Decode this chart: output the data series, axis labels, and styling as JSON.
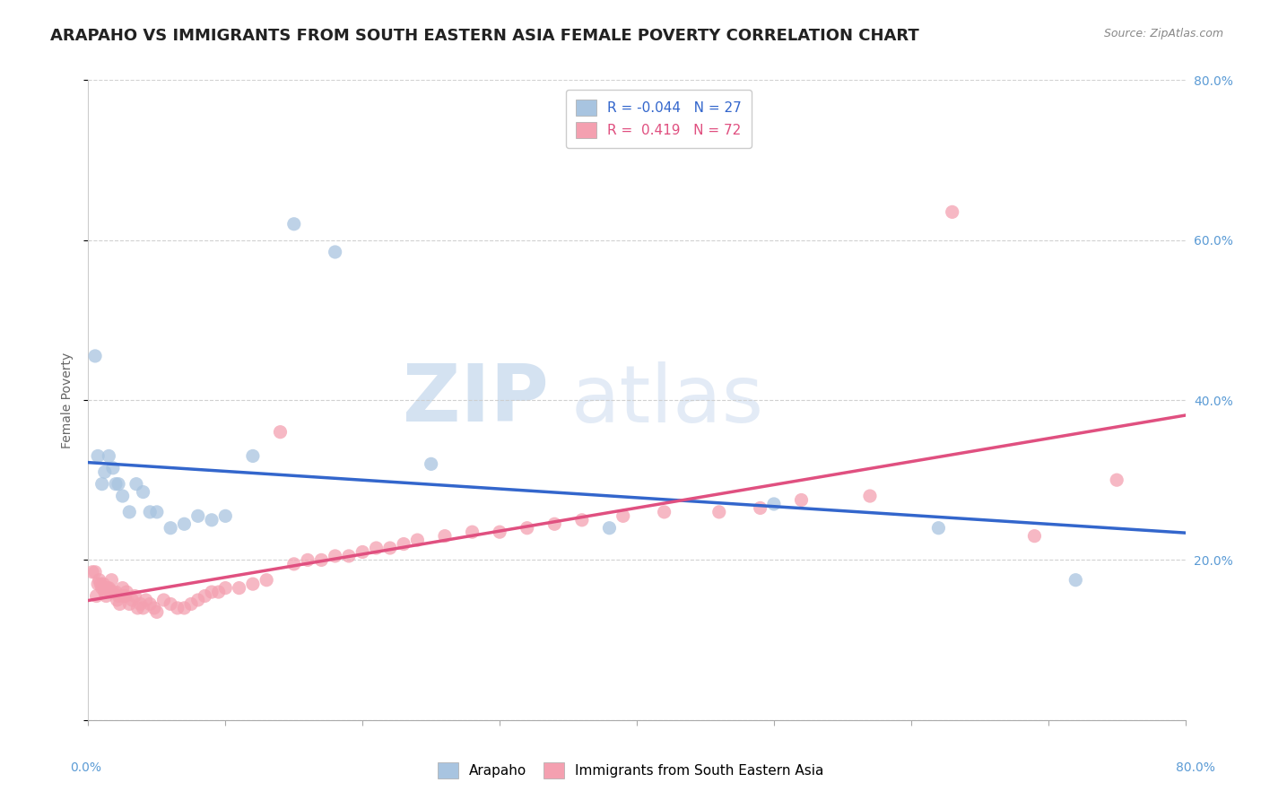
{
  "title": "ARAPAHO VS IMMIGRANTS FROM SOUTH EASTERN ASIA FEMALE POVERTY CORRELATION CHART",
  "source": "Source: ZipAtlas.com",
  "ylabel": "Female Poverty",
  "right_yticks": [
    0.0,
    0.2,
    0.4,
    0.6,
    0.8
  ],
  "right_yticklabels": [
    "",
    "20.0%",
    "40.0%",
    "60.0%",
    "80.0%"
  ],
  "xlim": [
    0.0,
    0.8
  ],
  "ylim": [
    0.0,
    0.8
  ],
  "series1": {
    "name": "Arapaho",
    "color": "#a8c4e0",
    "line_color": "#3366cc",
    "R": -0.044,
    "N": 27,
    "x": [
      0.005,
      0.007,
      0.01,
      0.012,
      0.015,
      0.018,
      0.02,
      0.022,
      0.025,
      0.03,
      0.035,
      0.04,
      0.045,
      0.05,
      0.06,
      0.07,
      0.08,
      0.09,
      0.1,
      0.12,
      0.15,
      0.18,
      0.25,
      0.38,
      0.5,
      0.62,
      0.72
    ],
    "y": [
      0.455,
      0.33,
      0.295,
      0.31,
      0.33,
      0.315,
      0.295,
      0.295,
      0.28,
      0.26,
      0.295,
      0.285,
      0.26,
      0.26,
      0.24,
      0.245,
      0.255,
      0.25,
      0.255,
      0.33,
      0.62,
      0.585,
      0.32,
      0.24,
      0.27,
      0.24,
      0.175
    ]
  },
  "series2": {
    "name": "Immigrants from South Eastern Asia",
    "color": "#f4a0b0",
    "line_color": "#e05080",
    "R": 0.419,
    "N": 72,
    "x": [
      0.003,
      0.005,
      0.006,
      0.007,
      0.008,
      0.009,
      0.01,
      0.011,
      0.012,
      0.013,
      0.014,
      0.015,
      0.016,
      0.017,
      0.018,
      0.02,
      0.021,
      0.022,
      0.023,
      0.025,
      0.026,
      0.027,
      0.028,
      0.03,
      0.032,
      0.034,
      0.036,
      0.038,
      0.04,
      0.042,
      0.045,
      0.048,
      0.05,
      0.055,
      0.06,
      0.065,
      0.07,
      0.075,
      0.08,
      0.085,
      0.09,
      0.095,
      0.1,
      0.11,
      0.12,
      0.13,
      0.14,
      0.15,
      0.16,
      0.17,
      0.18,
      0.19,
      0.2,
      0.21,
      0.22,
      0.23,
      0.24,
      0.26,
      0.28,
      0.3,
      0.32,
      0.34,
      0.36,
      0.39,
      0.42,
      0.46,
      0.49,
      0.52,
      0.57,
      0.63,
      0.69,
      0.75
    ],
    "y": [
      0.185,
      0.185,
      0.155,
      0.17,
      0.175,
      0.17,
      0.165,
      0.17,
      0.16,
      0.155,
      0.165,
      0.165,
      0.16,
      0.175,
      0.16,
      0.16,
      0.15,
      0.155,
      0.145,
      0.165,
      0.155,
      0.155,
      0.16,
      0.145,
      0.15,
      0.155,
      0.14,
      0.145,
      0.14,
      0.15,
      0.145,
      0.14,
      0.135,
      0.15,
      0.145,
      0.14,
      0.14,
      0.145,
      0.15,
      0.155,
      0.16,
      0.16,
      0.165,
      0.165,
      0.17,
      0.175,
      0.36,
      0.195,
      0.2,
      0.2,
      0.205,
      0.205,
      0.21,
      0.215,
      0.215,
      0.22,
      0.225,
      0.23,
      0.235,
      0.235,
      0.24,
      0.245,
      0.25,
      0.255,
      0.26,
      0.26,
      0.265,
      0.275,
      0.28,
      0.635,
      0.23,
      0.3
    ]
  },
  "watermark_zip": "ZIP",
  "watermark_atlas": "atlas",
  "background_color": "#ffffff",
  "grid_color": "#cccccc",
  "title_fontsize": 13,
  "axis_label_fontsize": 10,
  "legend_fontsize": 11
}
